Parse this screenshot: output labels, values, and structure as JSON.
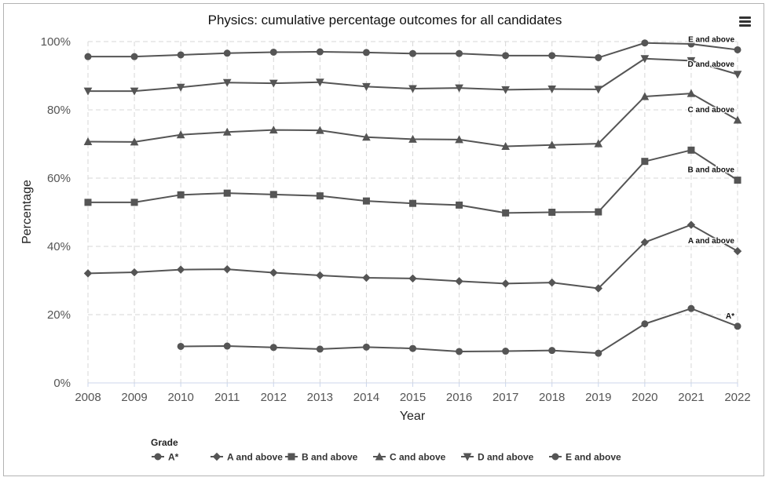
{
  "chart_data": {
    "type": "line",
    "title": "Physics: cumulative percentage outcomes for all candidates",
    "xlabel": "Year",
    "ylabel": "Percentage",
    "x": [
      2008,
      2009,
      2010,
      2011,
      2012,
      2013,
      2014,
      2015,
      2016,
      2017,
      2018,
      2019,
      2020,
      2021,
      2022
    ],
    "ylim": [
      0,
      100
    ],
    "yticks": [
      0,
      20,
      40,
      60,
      80,
      100
    ],
    "yticklabels": [
      "0%",
      "20%",
      "40%",
      "60%",
      "80%",
      "100%"
    ],
    "grid": true,
    "legend_title": "Grade",
    "legend_position": "bottom",
    "line_color": "#555555",
    "series": [
      {
        "name": "A*",
        "marker": "circle",
        "values": [
          null,
          null,
          10.7,
          10.8,
          10.4,
          9.9,
          10.5,
          10.1,
          9.2,
          9.3,
          9.5,
          8.7,
          17.3,
          21.8,
          16.6
        ]
      },
      {
        "name": "A and above",
        "marker": "diamond",
        "values": [
          32.1,
          32.4,
          33.2,
          33.3,
          32.3,
          31.5,
          30.8,
          30.6,
          29.8,
          29.1,
          29.4,
          27.7,
          41.2,
          46.3,
          38.6
        ]
      },
      {
        "name": "B and above",
        "marker": "square",
        "values": [
          52.9,
          52.9,
          55.1,
          55.6,
          55.2,
          54.8,
          53.3,
          52.6,
          52.1,
          49.8,
          50.0,
          50.1,
          64.9,
          68.2,
          59.4
        ]
      },
      {
        "name": "C and above",
        "marker": "triangle-up",
        "values": [
          70.7,
          70.6,
          72.7,
          73.5,
          74.1,
          74.0,
          72.0,
          71.4,
          71.3,
          69.3,
          69.7,
          70.1,
          83.9,
          84.8,
          77.0
        ]
      },
      {
        "name": "D and above",
        "marker": "triangle-down",
        "values": [
          85.5,
          85.5,
          86.6,
          88.0,
          87.8,
          88.1,
          86.8,
          86.2,
          86.4,
          85.9,
          86.1,
          86.0,
          95.0,
          94.4,
          90.4
        ]
      },
      {
        "name": "E and above",
        "marker": "circle",
        "values": [
          95.6,
          95.6,
          96.1,
          96.6,
          96.9,
          97.0,
          96.8,
          96.5,
          96.5,
          95.9,
          95.9,
          95.3,
          99.6,
          99.3,
          97.6
        ]
      }
    ]
  }
}
